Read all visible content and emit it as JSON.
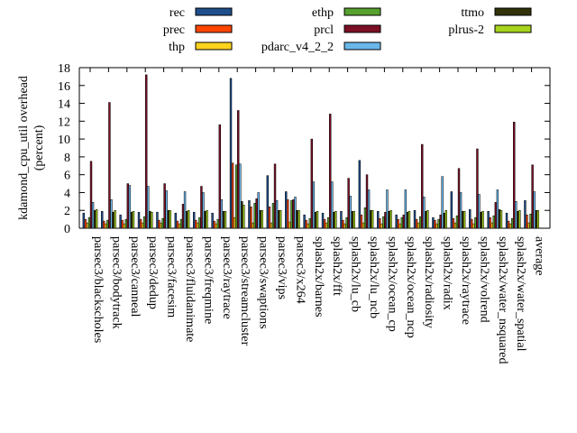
{
  "chart_data": {
    "type": "bar",
    "ylabel_lines": [
      "kdamond_cpu_util overhead",
      "(percent)"
    ],
    "xlabel": "",
    "ylim": [
      0,
      18
    ],
    "yticks": [
      0,
      2,
      4,
      6,
      8,
      10,
      12,
      14,
      16,
      18
    ],
    "legend_position": "top",
    "categories": [
      "parsec3/blackscholes",
      "parsec3/bodytrack",
      "parsec3/canneal",
      "parsec3/dedup",
      "parsec3/facesim",
      "parsec3/fluidanimate",
      "parsec3/freqmine",
      "parsec3/raytrace",
      "parsec3/streamcluster",
      "parsec3/swaptions",
      "parsec3/vips",
      "parsec3/x264",
      "splash2x/barnes",
      "splash2x/fft",
      "splash2x/lu_cb",
      "splash2x/lu_ncb",
      "splash2x/ocean_cp",
      "splash2x/ocean_ncp",
      "splash2x/radiosity",
      "splash2x/radix",
      "splash2x/raytrace",
      "splash2x/volrend",
      "splash2x/water_nsquared",
      "splash2x/water_spatial",
      "average"
    ],
    "series": [
      {
        "name": "rec",
        "color": "#1f4e8c",
        "values": [
          1.7,
          1.9,
          1.5,
          1.8,
          1.8,
          1.7,
          1.8,
          1.7,
          16.8,
          3.1,
          5.9,
          4.1,
          1.5,
          1.7,
          1.9,
          7.6,
          1.9,
          1.5,
          2.0,
          1.2,
          4.1,
          2.1,
          1.9,
          1.7,
          3.1
        ]
      },
      {
        "name": "prec",
        "color": "#ff4500",
        "values": [
          1.0,
          0.8,
          0.9,
          1.0,
          0.9,
          0.8,
          0.9,
          0.8,
          7.3,
          2.4,
          2.4,
          3.2,
          0.9,
          1.0,
          0.9,
          1.5,
          1.1,
          1.0,
          1.0,
          0.9,
          1.1,
          1.0,
          1.2,
          0.8,
          1.5
        ]
      },
      {
        "name": "thp",
        "color": "#ffd21f",
        "values": [
          0.6,
          0.5,
          0.5,
          0.6,
          0.6,
          0.5,
          0.6,
          0.5,
          1.2,
          0.6,
          0.6,
          0.7,
          0.5,
          0.6,
          0.5,
          0.6,
          0.5,
          0.5,
          0.6,
          0.5,
          0.6,
          0.5,
          0.6,
          0.5,
          0.6
        ]
      },
      {
        "name": "ethp",
        "color": "#57a12e",
        "values": [
          1.2,
          0.9,
          1.0,
          1.3,
          1.1,
          1.0,
          1.2,
          1.0,
          7.1,
          2.8,
          2.8,
          3.1,
          1.1,
          1.2,
          1.2,
          2.3,
          1.3,
          1.2,
          1.3,
          1.0,
          1.4,
          1.2,
          1.4,
          1.1,
          1.6
        ]
      },
      {
        "name": "prcl",
        "color": "#7b0f24",
        "values": [
          7.5,
          14.1,
          5.0,
          17.2,
          5.0,
          2.7,
          4.7,
          11.6,
          13.2,
          3.3,
          7.2,
          3.2,
          10.0,
          12.8,
          5.6,
          6.0,
          1.8,
          1.5,
          9.4,
          1.5,
          6.7,
          8.9,
          2.9,
          11.9,
          7.1
        ]
      },
      {
        "name": "pdarc_v4_2_2",
        "color": "#6ab7ea",
        "values": [
          2.9,
          3.2,
          4.8,
          4.7,
          4.2,
          4.1,
          4.0,
          3.2,
          7.2,
          4.0,
          3.1,
          3.5,
          5.2,
          5.2,
          3.6,
          4.3,
          4.3,
          4.3,
          3.5,
          5.8,
          4.0,
          3.8,
          4.3,
          3.0,
          4.1
        ]
      },
      {
        "name": "ttmo",
        "color": "#32320a",
        "values": [
          2.0,
          1.8,
          1.8,
          1.9,
          2.0,
          1.9,
          1.9,
          1.9,
          3.0,
          2.0,
          2.0,
          2.0,
          1.8,
          1.8,
          1.9,
          2.0,
          1.9,
          1.8,
          1.9,
          1.7,
          1.9,
          1.8,
          2.1,
          1.9,
          2.0
        ]
      },
      {
        "name": "plrus-2",
        "color": "#a6d41c",
        "values": [
          2.1,
          2.0,
          1.9,
          1.8,
          2.0,
          2.0,
          2.0,
          1.9,
          2.6,
          2.0,
          2.0,
          2.0,
          1.9,
          1.9,
          1.9,
          2.0,
          2.0,
          1.9,
          2.0,
          2.0,
          1.9,
          1.9,
          2.0,
          2.0,
          2.0
        ]
      }
    ]
  }
}
